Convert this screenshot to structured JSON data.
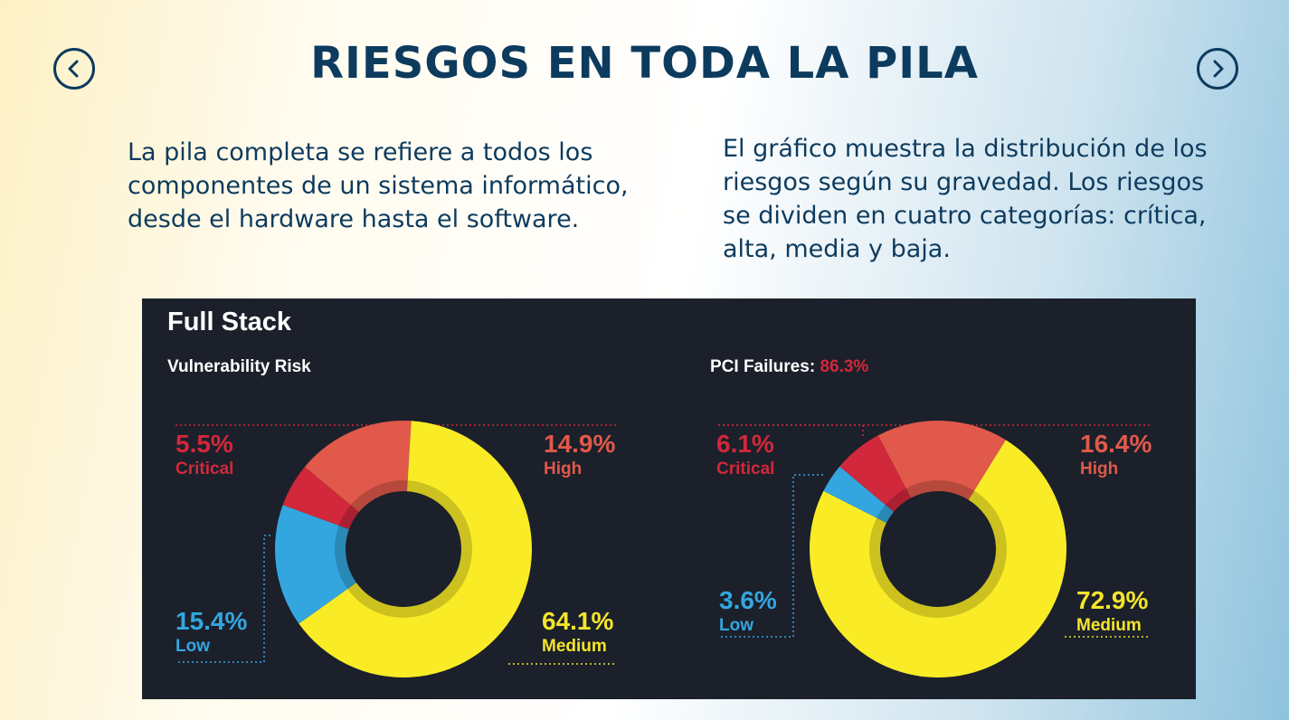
{
  "header": {
    "title": "RIESGOS EN TODA LA PILA"
  },
  "nav": {
    "prev_icon": "chevron-left-icon",
    "next_icon": "chevron-right-icon"
  },
  "text": {
    "left": "La pila completa se refiere a todos los componentes de un sistema informático, desde el hardware hasta el software.",
    "right": "El gráfico muestra la distribución de los riesgos según su gravedad. Los riesgos se dividen en cuatro categorías: crítica, alta, media y baja."
  },
  "panel": {
    "title": "Full Stack"
  },
  "colors": {
    "critical": "#d1283b",
    "high": "#e0594a",
    "medium": "#f9ec26",
    "low": "#34a6df",
    "panel_bg": "#1b202b",
    "title": "#0d3b5e"
  },
  "chart_data": [
    {
      "type": "pie",
      "title": "Vulnerability Risk",
      "title_value": "",
      "series": [
        {
          "name": "Critical",
          "value": 5.5,
          "label": "5.5%"
        },
        {
          "name": "High",
          "value": 14.9,
          "label": "14.9%"
        },
        {
          "name": "Medium",
          "value": 64.1,
          "label": "64.1%"
        },
        {
          "name": "Low",
          "value": 15.4,
          "label": "15.4%"
        }
      ]
    },
    {
      "type": "pie",
      "title": "PCI Failures:",
      "title_value": "86.3%",
      "series": [
        {
          "name": "Critical",
          "value": 6.1,
          "label": "6.1%"
        },
        {
          "name": "High",
          "value": 16.4,
          "label": "16.4%"
        },
        {
          "name": "Medium",
          "value": 72.9,
          "label": "72.9%"
        },
        {
          "name": "Low",
          "value": 3.6,
          "label": "3.6%"
        }
      ]
    }
  ]
}
